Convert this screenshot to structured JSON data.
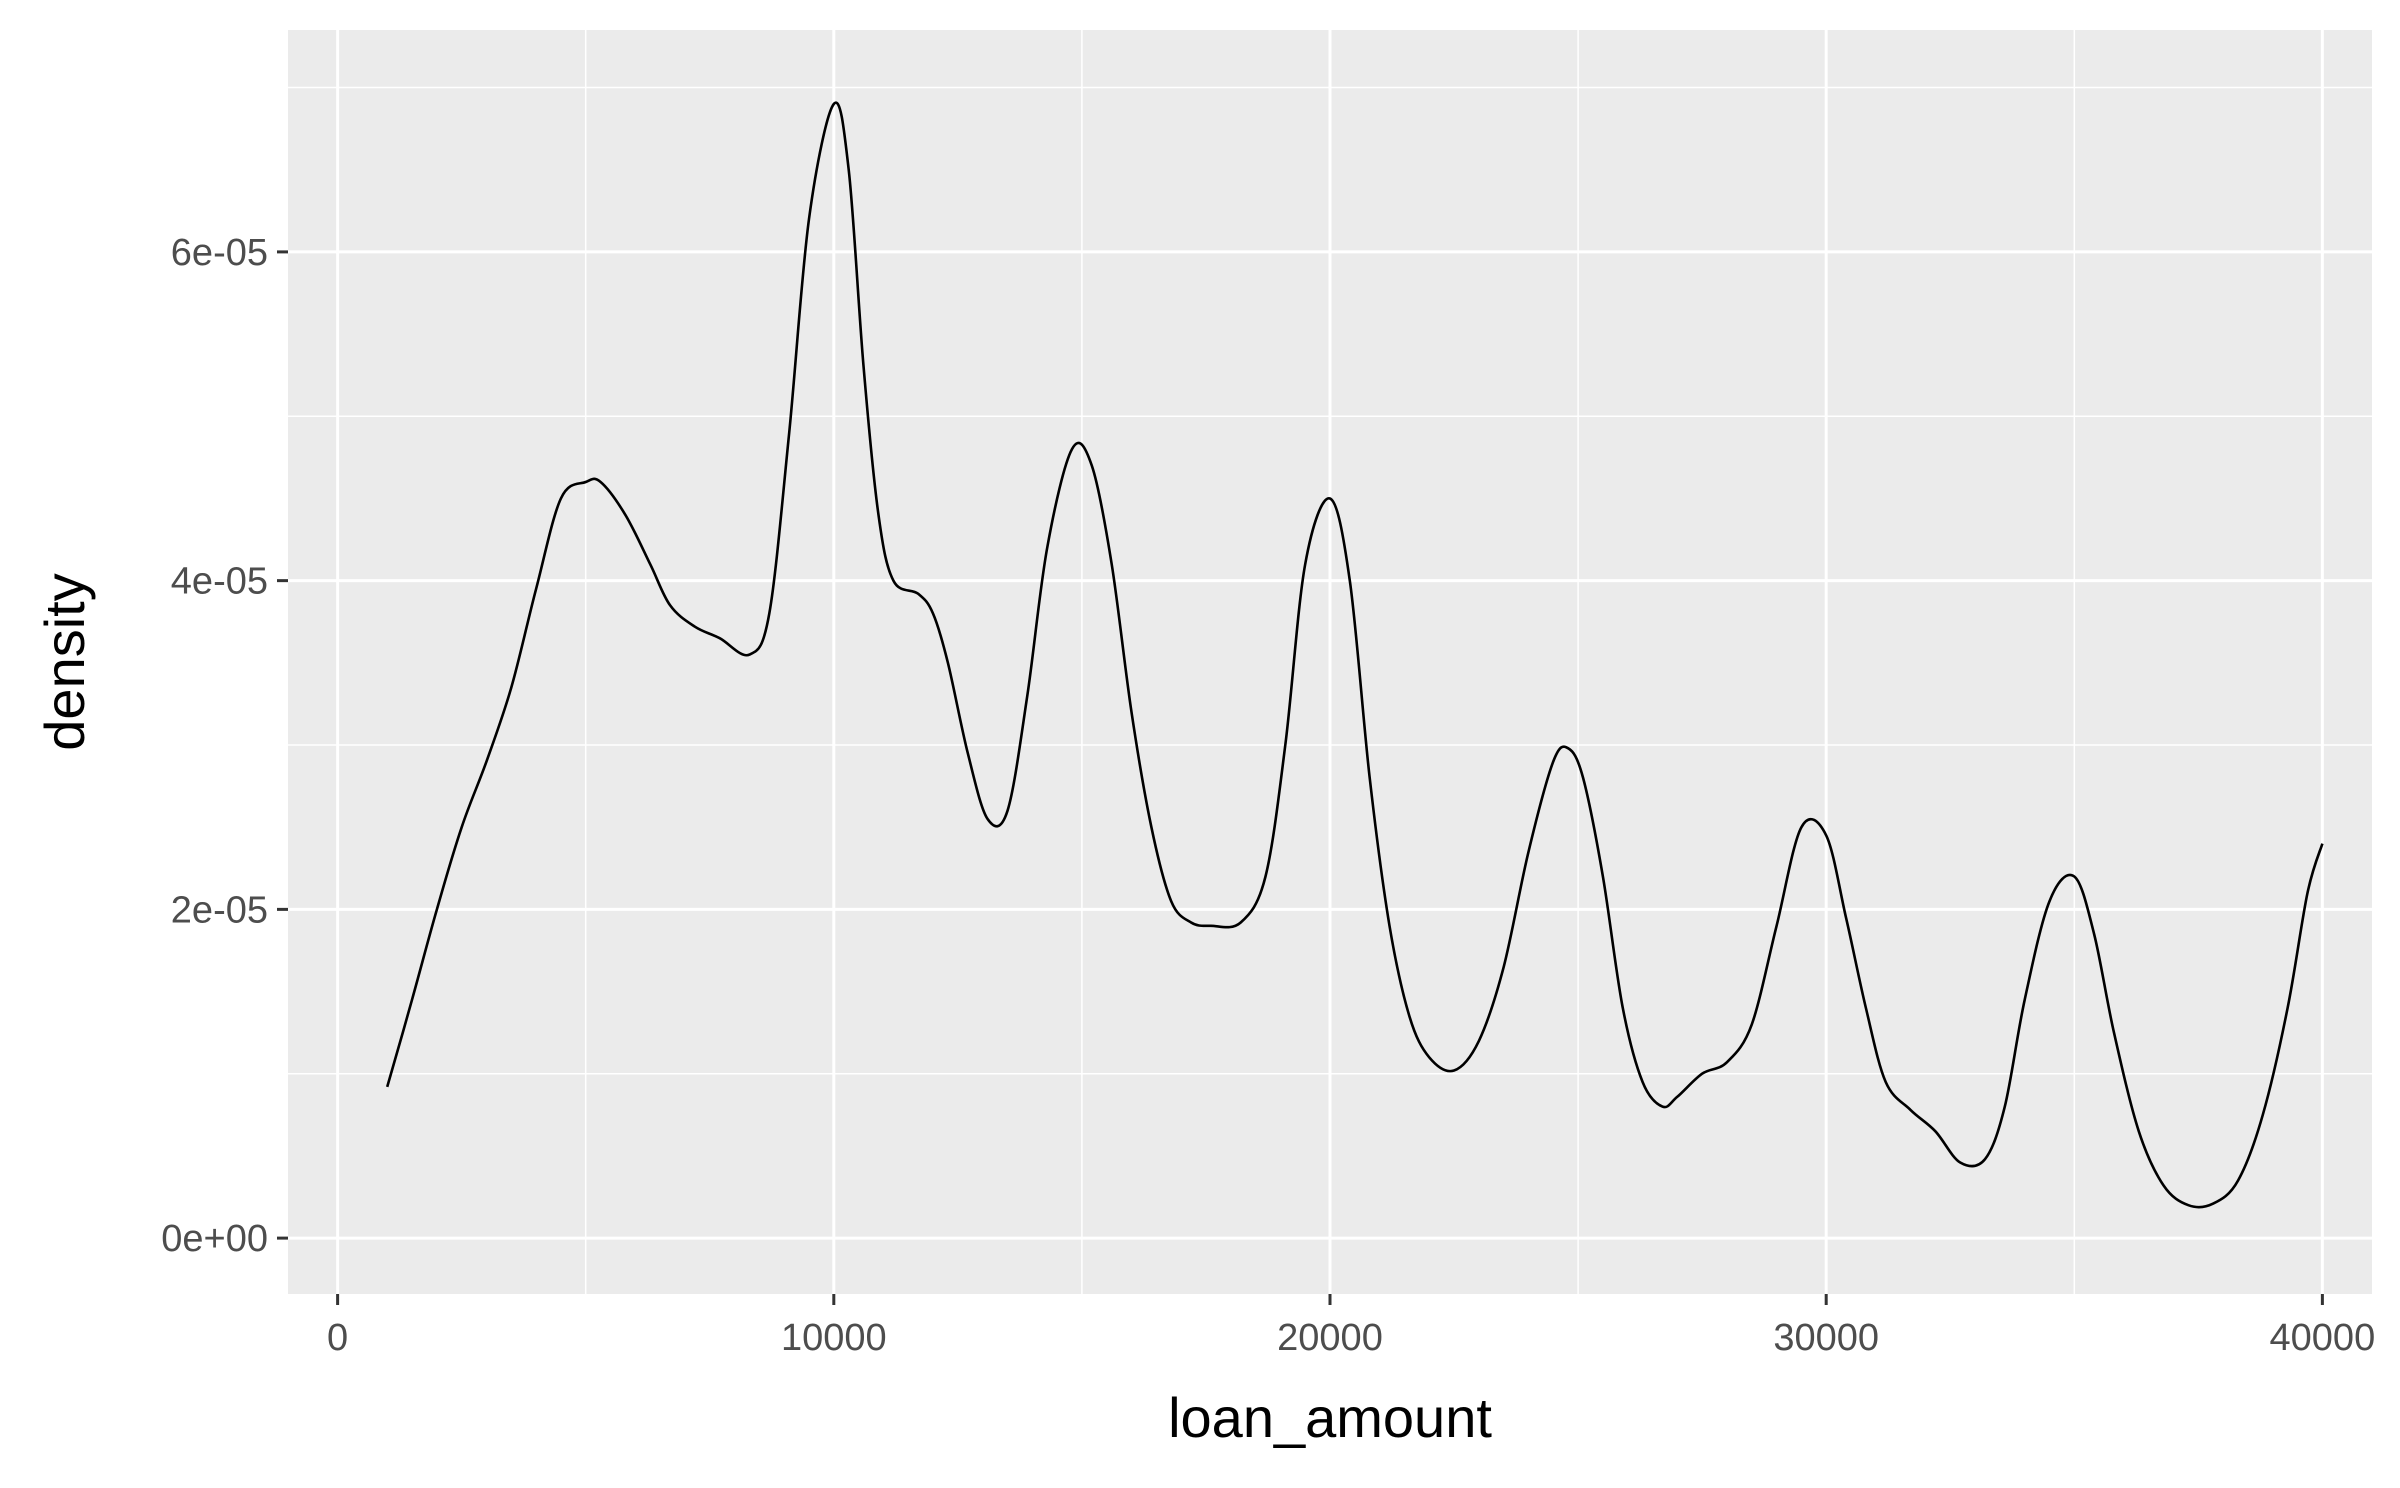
{
  "chart_data": {
    "type": "area",
    "geom": "density",
    "title": "",
    "xlabel": "loan_amount",
    "ylabel": "density",
    "xlim": [
      -1000,
      41000
    ],
    "ylim": [
      -3.4e-06,
      7.35e-05
    ],
    "x_ticks": [
      0,
      10000,
      20000,
      30000,
      40000
    ],
    "x_tick_labels": [
      "0",
      "10000",
      "20000",
      "30000",
      "40000"
    ],
    "y_ticks": [
      0,
      2e-05,
      4e-05,
      6e-05
    ],
    "y_tick_labels": [
      "0e+00",
      "2e-05",
      "4e-05",
      "6e-05"
    ],
    "grid": true,
    "colors": {
      "panel": "#ebebeb",
      "grid": "#ffffff",
      "line": "#000000"
    },
    "series": [
      {
        "x": [
          1000,
          1500,
          2000,
          2500,
          3000,
          3500,
          4000,
          4500,
          5000,
          5300,
          5800,
          6300,
          6700,
          7200,
          7700,
          8300,
          8700,
          9100,
          9500,
          10000,
          10300,
          10600,
          10900,
          11200,
          11700,
          12000,
          12300,
          12700,
          13100,
          13500,
          13900,
          14300,
          14800,
          15200,
          15600,
          16000,
          16400,
          16800,
          17200,
          17600,
          18200,
          18700,
          19100,
          19500,
          20000,
          20400,
          20800,
          21200,
          21600,
          22000,
          22500,
          23000,
          23500,
          24000,
          24500,
          24800,
          25100,
          25500,
          25900,
          26300,
          26700,
          27000,
          27500,
          28000,
          28500,
          29000,
          29500,
          30000,
          30400,
          30800,
          31200,
          31700,
          32200,
          32700,
          33200,
          33600,
          34000,
          34500,
          35000,
          35400,
          35800,
          36300,
          36800,
          37300,
          37800,
          38300,
          38800,
          39300,
          39700,
          40000
        ],
        "y": [
          9.2e-06,
          1.45e-05,
          2e-05,
          2.5e-05,
          2.9e-05,
          3.35e-05,
          3.95e-05,
          4.5e-05,
          4.6e-05,
          4.6e-05,
          4.4e-05,
          4.1e-05,
          3.85e-05,
          3.72e-05,
          3.65e-05,
          3.55e-05,
          3.8e-05,
          4.9e-05,
          6.2e-05,
          6.9e-05,
          6.5e-05,
          5.3e-05,
          4.4e-05,
          4e-05,
          3.92e-05,
          3.8e-05,
          3.5e-05,
          2.95e-05,
          2.55e-05,
          2.6e-05,
          3.3e-05,
          4.2e-05,
          4.8e-05,
          4.7e-05,
          4.1e-05,
          3.2e-05,
          2.5e-05,
          2.05e-05,
          1.92e-05,
          1.9e-05,
          1.92e-05,
          2.2e-05,
          3e-05,
          4.1e-05,
          4.5e-05,
          4e-05,
          2.8e-05,
          1.9e-05,
          1.35e-05,
          1.1e-05,
          1.02e-05,
          1.2e-05,
          1.65e-05,
          2.35e-05,
          2.9e-05,
          2.98e-05,
          2.8e-05,
          2.2e-05,
          1.4e-05,
          9.5e-06,
          8e-06,
          8.6e-06,
          1e-05,
          1.07e-05,
          1.3e-05,
          1.9e-05,
          2.5e-05,
          2.45e-05,
          1.95e-05,
          1.4e-05,
          9.5e-06,
          7.8e-06,
          6.5e-06,
          4.6e-06,
          4.8e-06,
          8e-06,
          1.45e-05,
          2.05e-05,
          2.2e-05,
          1.85e-05,
          1.25e-05,
          6.5e-06,
          3.2e-06,
          2e-06,
          2.1e-06,
          3.5e-06,
          7.5e-06,
          1.4e-05,
          2.1e-05,
          2.4e-05
        ]
      }
    ]
  }
}
